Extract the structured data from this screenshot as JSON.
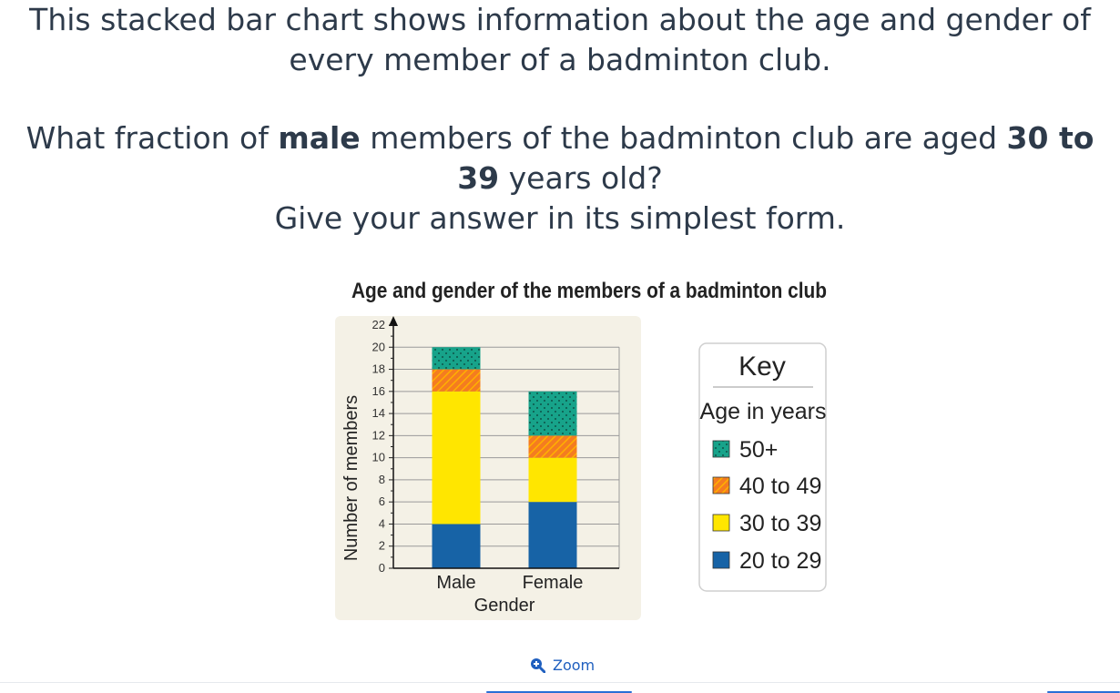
{
  "question": {
    "intro_line1": "This stacked bar chart shows information about the age and gender of",
    "intro_line2": "every member of a badminton club.",
    "ask_part1": "What fraction of ",
    "ask_bold1": "male",
    "ask_part2": " members of the badminton club are aged ",
    "ask_bold2a": "30 to",
    "ask_bold2b": "39",
    "ask_part3": " years old?",
    "ask_line3": "Give your answer in its simplest form."
  },
  "chart_data": {
    "type": "bar",
    "stacked": true,
    "title": "Age and gender of the members of a badminton club",
    "xlabel": "Gender",
    "ylabel": "Number of members",
    "ylim": [
      0,
      22
    ],
    "yticks": [
      0,
      2,
      4,
      6,
      8,
      10,
      12,
      14,
      16,
      18,
      20,
      22
    ],
    "grid": true,
    "categories": [
      "Male",
      "Female"
    ],
    "series": [
      {
        "name": "20 to 29",
        "values": [
          4,
          6
        ],
        "color": "#1763a6",
        "pattern": "solid"
      },
      {
        "name": "30 to 39",
        "values": [
          12,
          4
        ],
        "color": "#ffe600",
        "pattern": "solid"
      },
      {
        "name": "40 to 49",
        "values": [
          2,
          2
        ],
        "color": "#f47c20",
        "pattern": "hatch"
      },
      {
        "name": "50+",
        "values": [
          2,
          4
        ],
        "color": "#17a38a",
        "pattern": "dots"
      }
    ],
    "legend": {
      "title": "Key",
      "subtitle": "Age in years",
      "placement": "right",
      "order": [
        "50+",
        "40 to 49",
        "30 to 39",
        "20 to 29"
      ]
    }
  },
  "zoom_label": "Zoom",
  "zoom_icon": "zoom-in-icon"
}
